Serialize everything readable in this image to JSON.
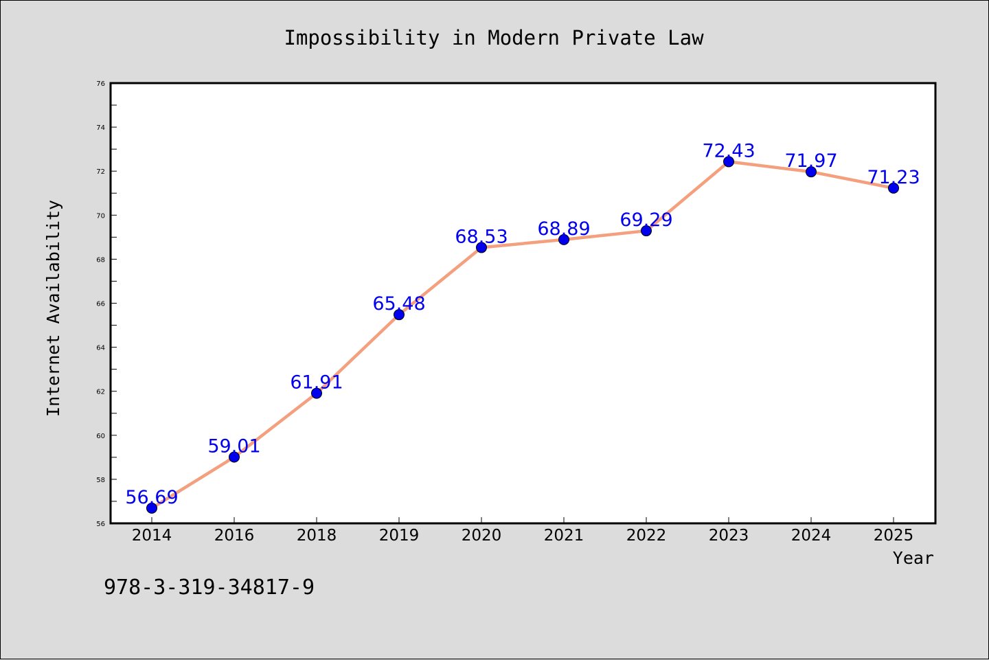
{
  "chart_data": {
    "type": "line",
    "title": "Impossibility in Modern Private Law",
    "xlabel": "Year",
    "ylabel": "Internet Availability",
    "categories": [
      "2014",
      "2016",
      "2018",
      "2019",
      "2020",
      "2021",
      "2022",
      "2023",
      "2024",
      "2025"
    ],
    "series": [
      {
        "values": [
          56.69,
          59.01,
          61.91,
          65.48,
          68.53,
          68.89,
          69.29,
          72.43,
          71.97,
          71.23
        ],
        "labels": [
          "56.69",
          "59.01",
          "61.91",
          "65.48",
          "68.53",
          "68.89",
          "69.29",
          "72.43",
          "71.97",
          "71.23"
        ],
        "line_color": "#f4a07e",
        "marker_color": "#0000ee",
        "label_color": "#0000ee"
      }
    ],
    "ylim": [
      56,
      76
    ],
    "yticks": [
      "56",
      "58",
      "60",
      "62",
      "64",
      "66",
      "68",
      "70",
      "72",
      "74",
      "76"
    ],
    "grid": false,
    "legend": "none"
  },
  "footnote": "978-3-319-34817-9"
}
